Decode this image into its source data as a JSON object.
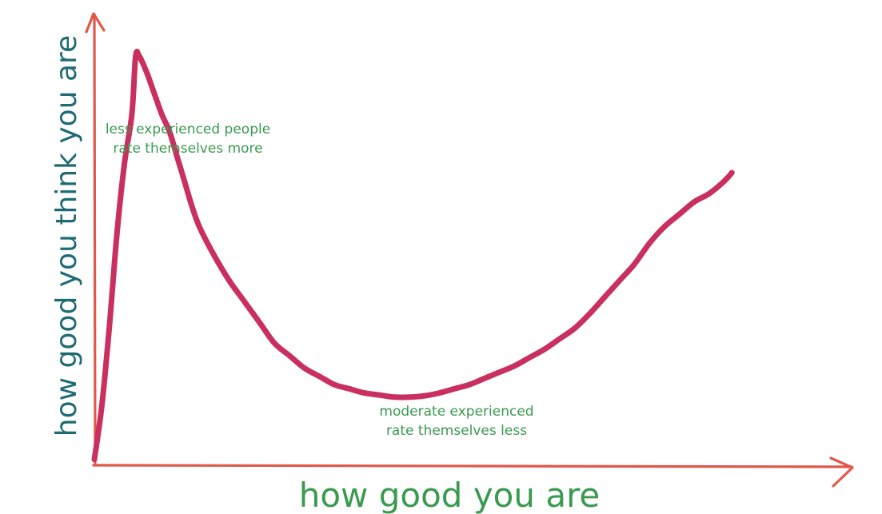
{
  "chart_data": {
    "type": "line",
    "title": "",
    "xlabel": "how good you are",
    "ylabel": "how good you think you are",
    "xlim": [
      0,
      100
    ],
    "ylim": [
      0,
      100
    ],
    "grid": false,
    "series": [
      {
        "x": [
          0,
          1,
          2,
          3,
          4,
          5,
          5.5,
          6,
          7,
          8,
          9,
          10,
          11,
          12,
          13,
          14,
          16,
          18,
          20,
          22,
          24,
          26,
          28,
          30,
          32,
          34,
          36,
          38,
          40,
          42,
          44,
          46,
          48,
          50,
          52,
          54,
          56,
          58,
          60,
          62,
          64,
          66,
          68,
          70,
          72,
          74,
          76,
          78,
          80,
          82,
          84,
          85
        ],
        "y": [
          1,
          14,
          33,
          55,
          72,
          84,
          98,
          98,
          94,
          89,
          84,
          80,
          74,
          68,
          62,
          57,
          50,
          44,
          39,
          34,
          29,
          26,
          23,
          21,
          19,
          18,
          17,
          16.5,
          16,
          16,
          16.3,
          17,
          18,
          19,
          20.5,
          22,
          23.5,
          25.5,
          27.5,
          30,
          32.5,
          36,
          40,
          44,
          48,
          53,
          57,
          60,
          63,
          65,
          68,
          70
        ]
      }
    ],
    "annotations": [
      {
        "lines": [
          "less experienced people",
          "rate themselves more"
        ]
      },
      {
        "lines": [
          "moderate experienced",
          "rate themselves less"
        ]
      }
    ],
    "colors": {
      "axis": "#e0584a",
      "curve": "#c9305f",
      "xlabel": "#3a9a4f",
      "ylabel": "#1f6b73",
      "annotation": "#3a9a4f"
    }
  }
}
